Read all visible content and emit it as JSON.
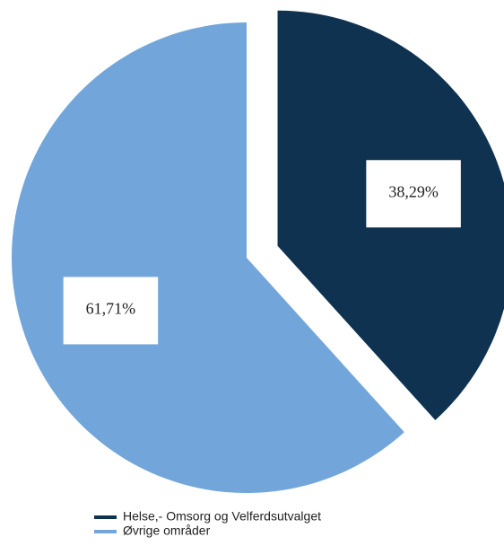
{
  "chart_data": {
    "type": "pie",
    "categories": [
      "Helse,- Omsorg og Velferdsutvalget",
      "Øvrige områder"
    ],
    "values": [
      38.29,
      61.71
    ],
    "value_labels": [
      "38,29%",
      "61,71%"
    ],
    "colors": [
      "#0e3250",
      "#72a6da"
    ],
    "exploded": [
      true,
      false
    ]
  }
}
